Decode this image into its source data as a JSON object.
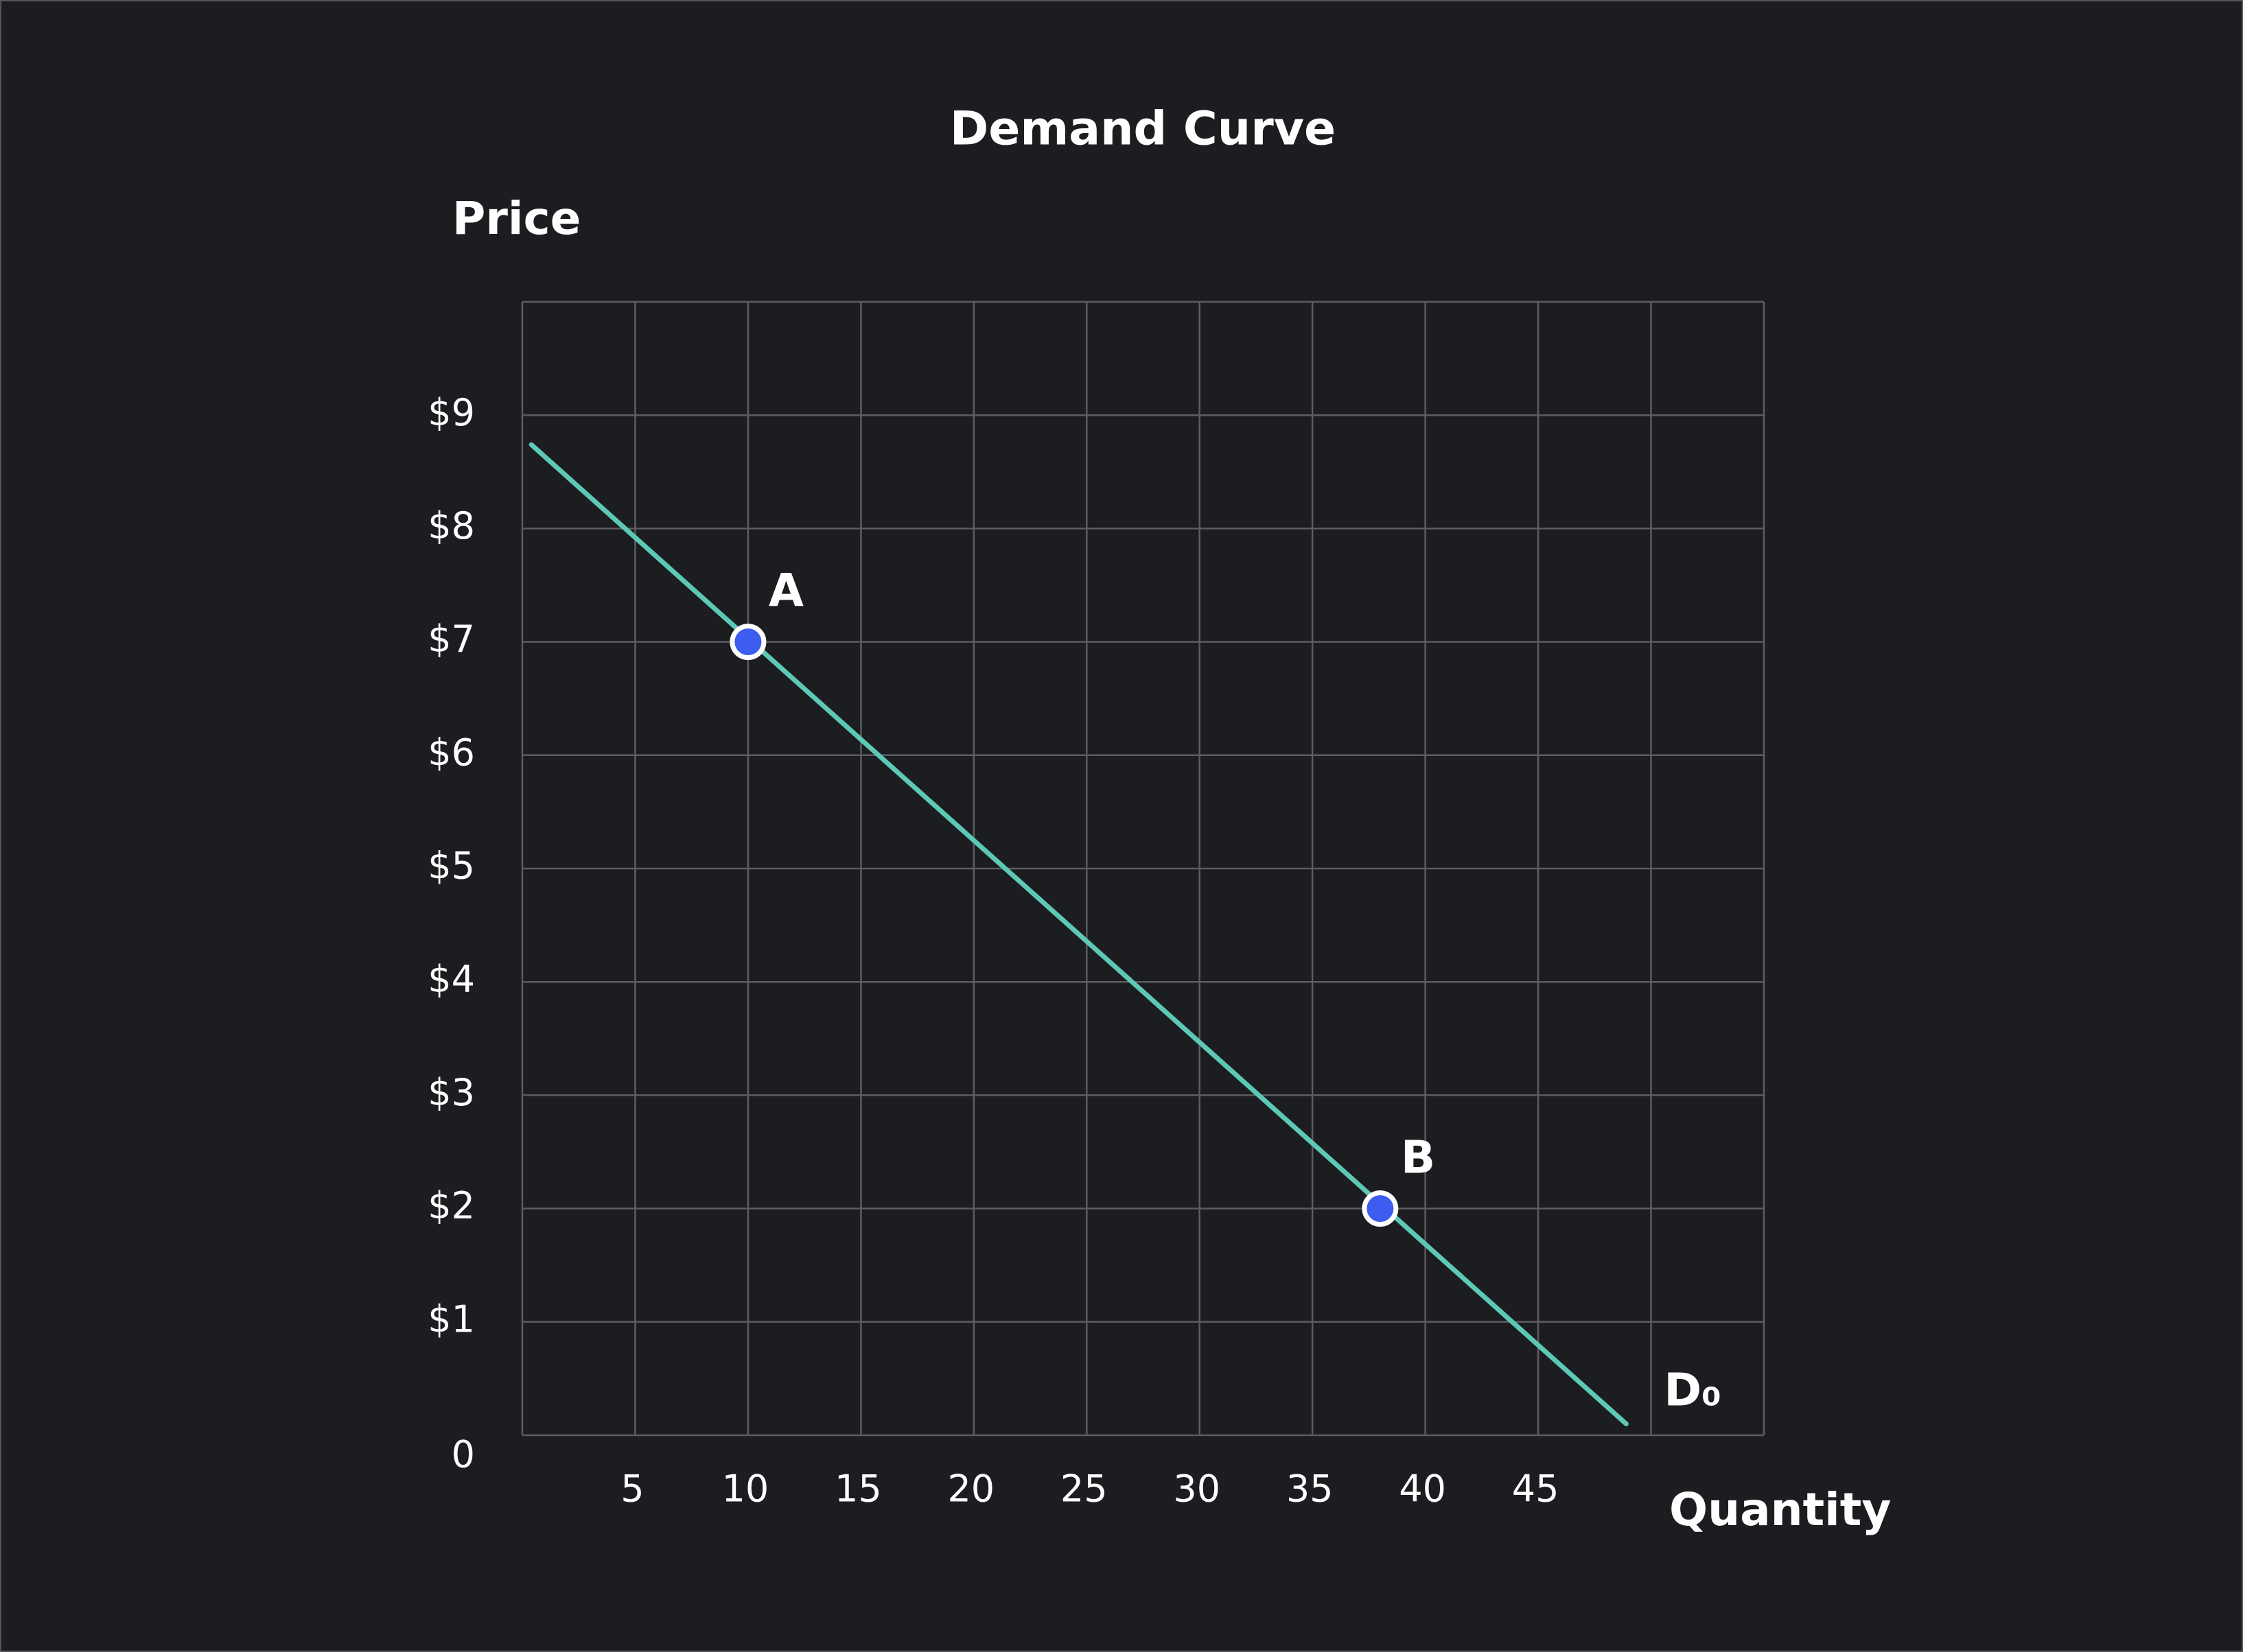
{
  "chart_data": {
    "type": "line",
    "title": "Demand Curve",
    "y_label": "Price",
    "x_label": "Quantity",
    "xlim": [
      0,
      55
    ],
    "ylim": [
      0,
      10
    ],
    "xticks": [
      5,
      10,
      15,
      20,
      25,
      30,
      35,
      40,
      45
    ],
    "yticks": [
      {
        "value": 0,
        "label": "0"
      },
      {
        "value": 1,
        "label": "$1"
      },
      {
        "value": 2,
        "label": "$2"
      },
      {
        "value": 3,
        "label": "$3"
      },
      {
        "value": 4,
        "label": "$4"
      },
      {
        "value": 5,
        "label": "$5"
      },
      {
        "value": 6,
        "label": "$6"
      },
      {
        "value": 7,
        "label": "$7"
      },
      {
        "value": 8,
        "label": "$8"
      },
      {
        "value": 9,
        "label": "$9"
      }
    ],
    "xgrid": [
      0,
      5,
      10,
      15,
      20,
      25,
      30,
      35,
      40,
      45,
      50,
      55
    ],
    "ygrid": [
      0,
      1,
      2,
      3,
      4,
      5,
      6,
      7,
      8,
      9,
      10
    ],
    "grid": true,
    "series": [
      {
        "name": "D₀",
        "color": "#5ec8b6",
        "x": [
          0.4,
          48.9
        ],
        "values": [
          8.74,
          0.1
        ]
      }
    ],
    "points": {
      "color": "#3d5cf0",
      "labels": [
        "A",
        "B"
      ],
      "x": [
        10,
        38
      ],
      "values": [
        7,
        2
      ]
    }
  }
}
